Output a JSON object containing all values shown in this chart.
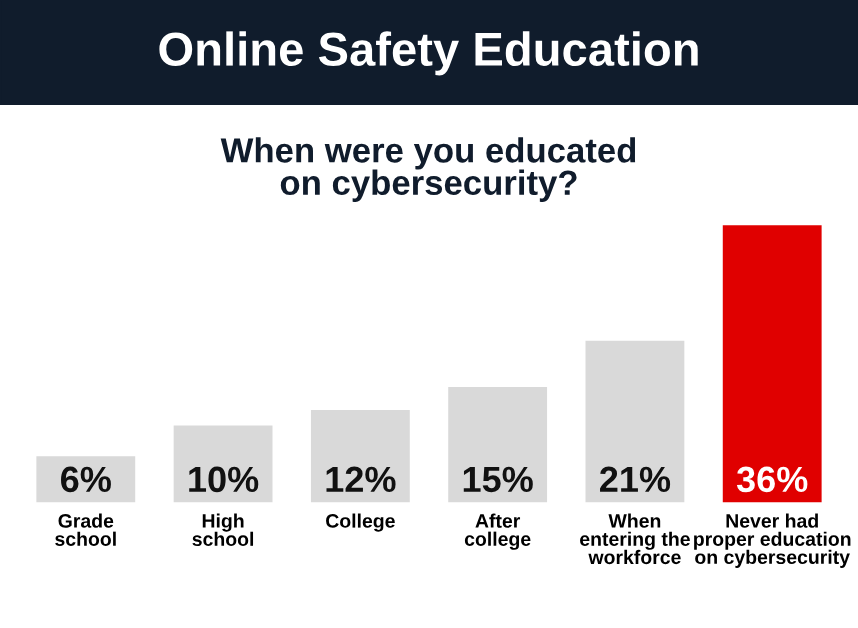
{
  "chart_data": {
    "type": "bar",
    "title": "Online Safety Education",
    "subtitle": "When were you educated\non cybersecurity?",
    "categories": [
      "Grade\nschool",
      "High\nschool",
      "College",
      "After\ncollege",
      "When\nentering the\nworkforce",
      "Never had\nproper education\non cybersecurity"
    ],
    "values": [
      6,
      10,
      12,
      15,
      21,
      36
    ],
    "value_labels": [
      "6%",
      "10%",
      "12%",
      "15%",
      "21%",
      "36%"
    ],
    "colors": [
      "#d9d9d9",
      "#d9d9d9",
      "#d9d9d9",
      "#d9d9d9",
      "#d9d9d9",
      "#e00000"
    ],
    "grid": false,
    "legend": false
  }
}
